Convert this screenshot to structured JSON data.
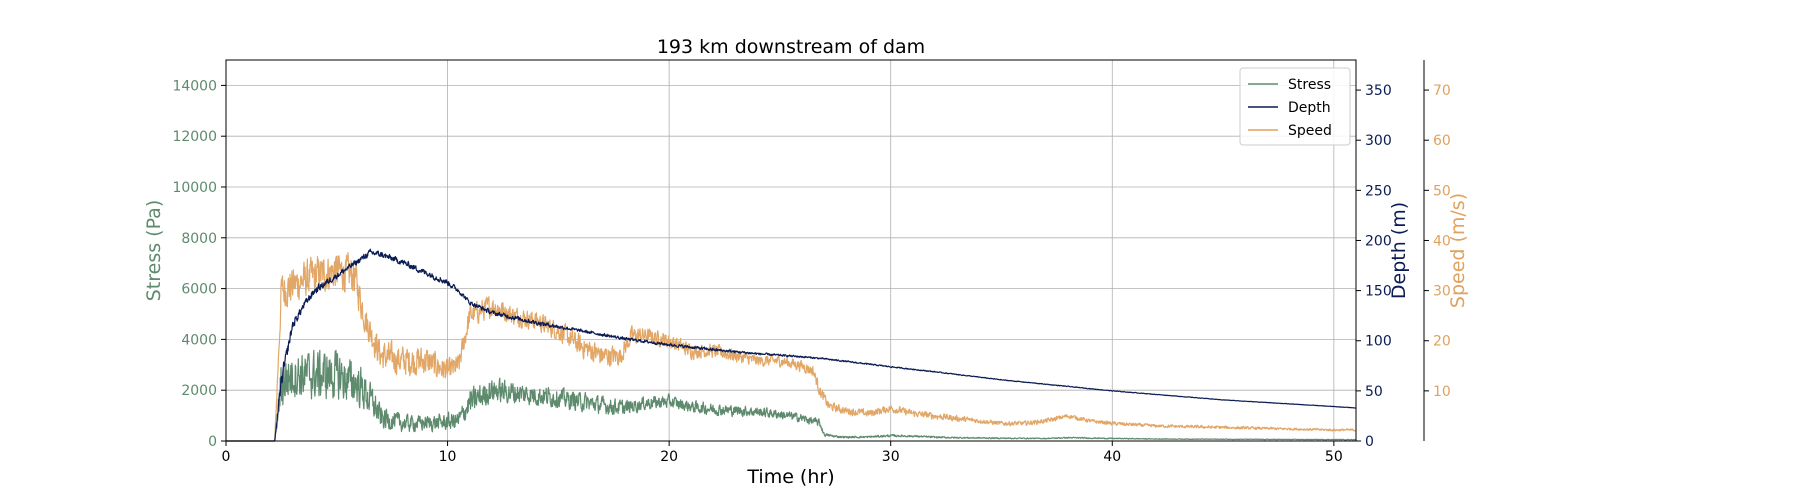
{
  "chart_data": {
    "type": "line",
    "title": "193 km downstream of dam",
    "xlabel": "Time (hr)",
    "xlim": [
      0,
      51
    ],
    "x_ticks": [
      0,
      10,
      20,
      30,
      40,
      50
    ],
    "grid": true,
    "legend_position": "top-right",
    "legend": [
      "Stress",
      "Depth",
      "Speed"
    ],
    "axes": [
      {
        "id": "stress",
        "label": "Stress (Pa)",
        "side": "left",
        "color": "#5e8a6d",
        "ylim": [
          0,
          15000
        ],
        "ticks": [
          0,
          2000,
          4000,
          6000,
          8000,
          10000,
          12000,
          14000
        ]
      },
      {
        "id": "depth",
        "label": "Depth (m)",
        "side": "right",
        "color": "#0b1c54",
        "ylim": [
          0,
          380
        ],
        "ticks": [
          0,
          50,
          100,
          150,
          200,
          250,
          300,
          350
        ]
      },
      {
        "id": "speed",
        "label": "Speed (m/s)",
        "side": "right-outer",
        "color": "#e0a25e",
        "ylim": [
          0,
          76
        ],
        "ticks": [
          10,
          20,
          30,
          40,
          50,
          60,
          70
        ]
      }
    ],
    "series": [
      {
        "name": "Stress",
        "axis": "stress",
        "color": "#5e8a6d",
        "x": [
          0,
          2.2,
          2.5,
          3,
          4,
          5,
          6,
          6.7,
          7,
          8,
          9,
          10,
          10.5,
          11,
          12,
          13,
          14,
          15,
          16,
          17,
          18,
          19,
          20,
          21,
          22,
          23,
          24,
          25,
          26,
          26.8,
          27,
          27.5,
          28,
          29,
          30,
          31,
          32,
          33,
          35,
          37,
          38,
          40,
          42,
          45,
          48,
          51
        ],
        "y": [
          0,
          0,
          2300,
          2600,
          2600,
          2600,
          2200,
          1400,
          900,
          700,
          700,
          750,
          800,
          1500,
          2000,
          1900,
          1800,
          1700,
          1550,
          1400,
          1300,
          1500,
          1550,
          1350,
          1250,
          1200,
          1150,
          1050,
          900,
          700,
          250,
          180,
          150,
          160,
          210,
          190,
          150,
          130,
          110,
          100,
          130,
          100,
          80,
          70,
          60,
          55
        ],
        "noise": [
          0,
          0,
          1500,
          1200,
          1300,
          1300,
          1100,
          800,
          600,
          450,
          400,
          450,
          500,
          700,
          650,
          600,
          550,
          500,
          500,
          450,
          400,
          350,
          350,
          300,
          300,
          280,
          260,
          240,
          220,
          200,
          80,
          60,
          50,
          50,
          60,
          50,
          45,
          40,
          30,
          25,
          35,
          25,
          20,
          15,
          15,
          15
        ]
      },
      {
        "name": "Depth",
        "axis": "depth",
        "color": "#0b1c54",
        "x": [
          0,
          2.2,
          2.5,
          3,
          3.5,
          4,
          5,
          6,
          6.5,
          7,
          8,
          9,
          10,
          10.5,
          11,
          12,
          14,
          16,
          18,
          20,
          22,
          24,
          26,
          27,
          30,
          32,
          35,
          40,
          45,
          51
        ],
        "y": [
          0,
          0,
          60,
          115,
          135,
          150,
          165,
          180,
          188,
          186,
          178,
          168,
          158,
          150,
          138,
          128,
          118,
          110,
          102,
          96,
          91,
          87,
          84,
          82,
          74,
          69,
          61,
          50,
          41,
          33
        ],
        "noise": [
          0,
          0,
          10,
          6,
          5,
          5,
          4,
          4,
          4,
          4,
          4,
          4,
          4,
          3,
          3,
          3,
          3,
          2,
          2,
          2,
          2,
          1.5,
          1.2,
          1,
          0.8,
          0.6,
          0.5,
          0.4,
          0.3,
          0.3
        ]
      },
      {
        "name": "Speed",
        "axis": "speed",
        "color": "#e0a25e",
        "x": [
          0,
          2.2,
          2.5,
          3,
          4,
          5,
          5.8,
          6.3,
          7,
          8,
          9,
          10,
          10.5,
          11,
          12,
          13,
          14,
          15,
          16,
          17,
          17.8,
          18.3,
          19,
          20,
          21,
          22,
          23,
          24,
          25,
          26,
          26.5,
          26.8,
          27.2,
          28,
          29,
          30,
          31,
          32,
          33,
          34,
          35,
          36,
          37,
          38,
          39,
          40,
          42,
          45,
          48,
          50,
          51
        ],
        "y": [
          0,
          0,
          30,
          31,
          33,
          34,
          33,
          24,
          17,
          16,
          16,
          14,
          15,
          25,
          27,
          25,
          24,
          22,
          19,
          17,
          17,
          21,
          21,
          20,
          18,
          18,
          17,
          16,
          16,
          15,
          14,
          10,
          7,
          6,
          5.5,
          6.5,
          5.5,
          5,
          4.5,
          4,
          3.5,
          3.5,
          4,
          5,
          4,
          3.5,
          3,
          2.7,
          2.4,
          2.2,
          2.2
        ],
        "noise": [
          0,
          0,
          5,
          5,
          5,
          5,
          5,
          4,
          4,
          4,
          4,
          3,
          3,
          3,
          3,
          2.5,
          2.5,
          2.5,
          3,
          3,
          2.5,
          2.5,
          2,
          2,
          2,
          1.8,
          1.8,
          1.5,
          1.5,
          1.5,
          1.5,
          1.5,
          1.2,
          1,
          1,
          1,
          0.9,
          0.9,
          0.8,
          0.6,
          0.6,
          0.6,
          0.6,
          0.6,
          0.5,
          0.5,
          0.4,
          0.4,
          0.3,
          0.3,
          0.3
        ]
      }
    ]
  }
}
